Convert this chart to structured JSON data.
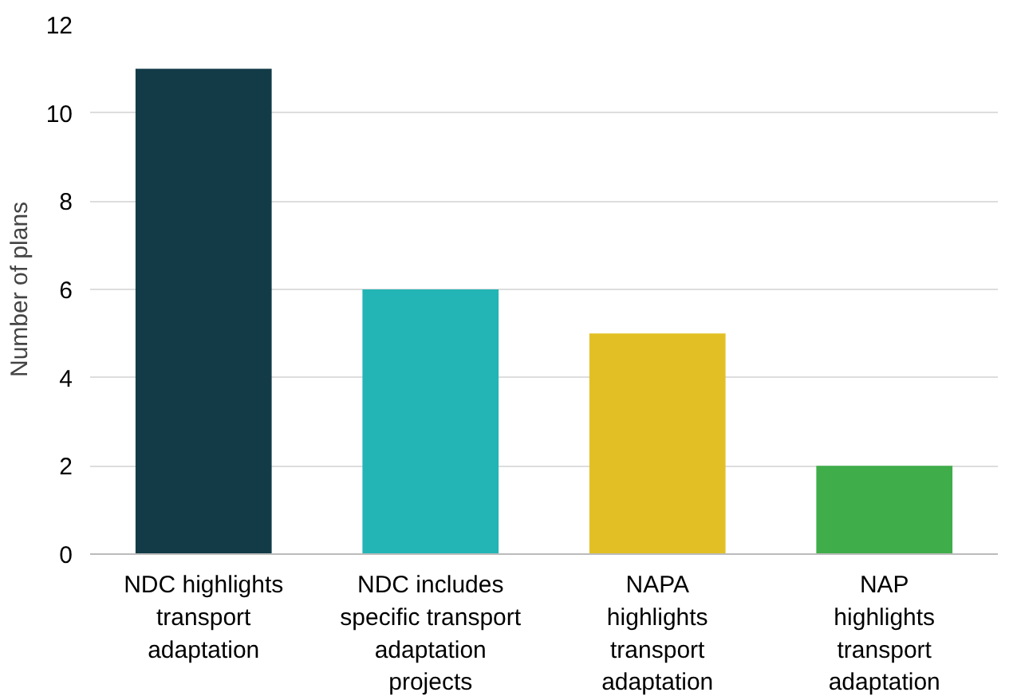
{
  "chart_data": {
    "type": "bar",
    "ylabel": "Number of plans",
    "categories": [
      "NDC highlights\ntransport\nadaptation",
      "NDC includes\nspecific transport\nadaptation\nprojects",
      "NAPA\nhighlights\ntransport\nadaptation",
      "NAP\nhighlights\ntransport\nadaptation"
    ],
    "values": [
      11,
      6,
      5,
      2
    ],
    "colors": [
      "#123b47",
      "#23b5b5",
      "#e2c025",
      "#3fad4a"
    ],
    "ylim": [
      0,
      12
    ],
    "yticks": [
      0,
      2,
      4,
      6,
      8,
      10,
      12
    ],
    "grid": "y"
  }
}
